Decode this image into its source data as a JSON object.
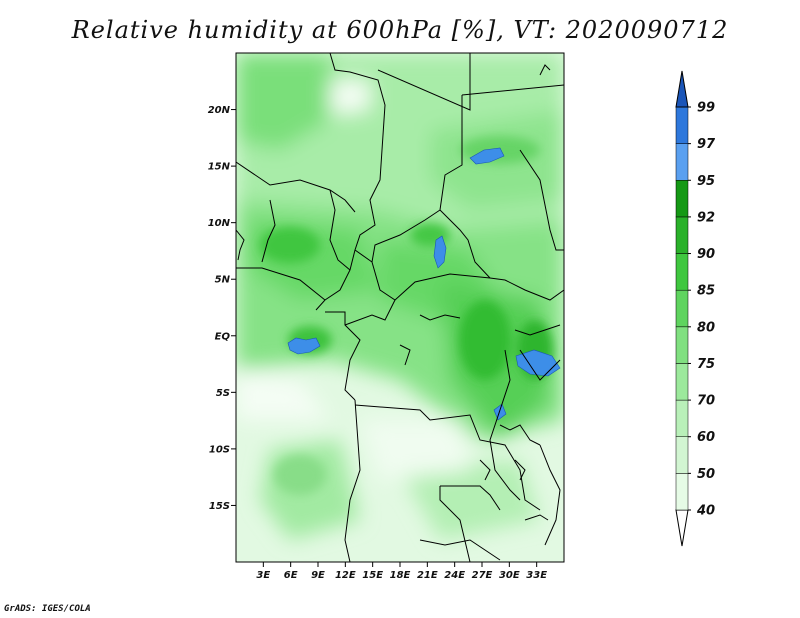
{
  "title": "Relative humidity at 600hPa [%], VT: 2020090712",
  "credit": "GrADS: IGES/COLA",
  "map": {
    "lon_range": [
      0,
      36
    ],
    "lat_range": [
      -20,
      25
    ],
    "lat_ticks": [
      {
        "value": 20,
        "label": "20N"
      },
      {
        "value": 15,
        "label": "15N"
      },
      {
        "value": 10,
        "label": "10N"
      },
      {
        "value": 5,
        "label": "5N"
      },
      {
        "value": 0,
        "label": "EQ"
      },
      {
        "value": -5,
        "label": "5S"
      },
      {
        "value": -10,
        "label": "10S"
      },
      {
        "value": -15,
        "label": "15S"
      }
    ],
    "lon_ticks": [
      {
        "value": 3,
        "label": "3E"
      },
      {
        "value": 6,
        "label": "6E"
      },
      {
        "value": 9,
        "label": "9E"
      },
      {
        "value": 12,
        "label": "12E"
      },
      {
        "value": 15,
        "label": "15E"
      },
      {
        "value": 18,
        "label": "18E"
      },
      {
        "value": 21,
        "label": "21E"
      },
      {
        "value": 24,
        "label": "24E"
      },
      {
        "value": 27,
        "label": "27E"
      },
      {
        "value": 30,
        "label": "30E"
      },
      {
        "value": 33,
        "label": "33E"
      }
    ]
  },
  "colorbar": {
    "levels": [
      {
        "label": "40",
        "color": "#e6fbe6"
      },
      {
        "label": "50",
        "color": "#d2f5d2"
      },
      {
        "label": "60",
        "color": "#b9f0b9"
      },
      {
        "label": "70",
        "color": "#9ce99c"
      },
      {
        "label": "75",
        "color": "#80e080"
      },
      {
        "label": "80",
        "color": "#5fd45f"
      },
      {
        "label": "85",
        "color": "#3fc73f"
      },
      {
        "label": "90",
        "color": "#2ab12a"
      },
      {
        "label": "92",
        "color": "#159915"
      },
      {
        "label": "95",
        "color": "#5aa0f0"
      },
      {
        "label": "97",
        "color": "#2e78dc"
      },
      {
        "label": "99",
        "color": "#1a55b8"
      }
    ],
    "below_color": "#ffffff",
    "above_color": "#1a55b8"
  }
}
